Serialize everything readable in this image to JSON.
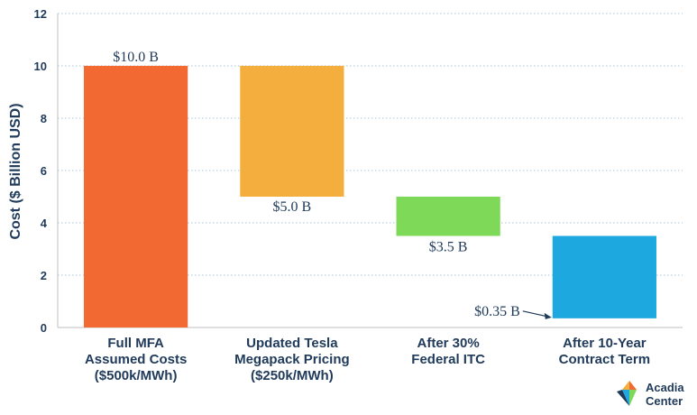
{
  "chart_data": {
    "type": "bar",
    "subtype": "waterfall",
    "categories": [
      [
        "Full MFA",
        "Assumed Costs",
        "($500k/MWh)"
      ],
      [
        "Updated Tesla",
        "Megapack Pricing",
        "($250k/MWh)"
      ],
      [
        "After 30%",
        "Federal ITC"
      ],
      [
        "After 10-Year",
        "Contract Term"
      ]
    ],
    "bars": [
      {
        "start": 0,
        "end": 10.0,
        "color": "#f26a31"
      },
      {
        "start": 5.0,
        "end": 10.0,
        "color": "#f4ae3d"
      },
      {
        "start": 3.5,
        "end": 5.0,
        "color": "#7dd957"
      },
      {
        "start": 0.35,
        "end": 3.5,
        "color": "#1ea8e0"
      }
    ],
    "data_labels": [
      "$10.0 B",
      "$5.0 B",
      "$3.5 B",
      "$0.35 B"
    ],
    "ylabel": "Cost ($ Billion USD)",
    "ylim": [
      0,
      12
    ],
    "yticks": [
      0,
      2,
      4,
      6,
      8,
      10,
      12
    ],
    "grid": true,
    "grid_style": "dotted"
  },
  "logo": {
    "name": "Acadia Center",
    "lines": [
      "Acadia",
      "Center"
    ]
  }
}
